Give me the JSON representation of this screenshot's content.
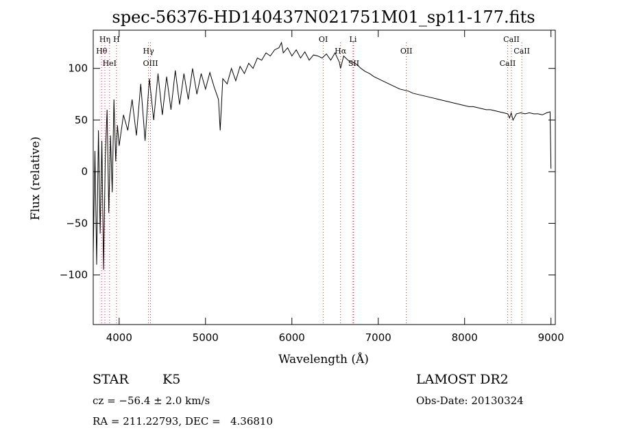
{
  "chart_data": {
    "type": "line",
    "title": "spec-56376-HD140437N021751M01_sp11-177.fits",
    "xlabel": "Wavelength (Å)",
    "ylabel": "Flux (relative)",
    "xlim": [
      3700,
      9050
    ],
    "ylim": [
      -148,
      137
    ],
    "xticks": [
      4000,
      5000,
      6000,
      7000,
      8000,
      9000
    ],
    "xtick_labels": [
      "4000",
      "5000",
      "6000",
      "7000",
      "8000",
      "9000"
    ],
    "yticks": [
      -100,
      -50,
      0,
      50,
      100
    ],
    "ytick_labels": [
      "−100",
      "−50",
      "0",
      "50",
      "100"
    ],
    "grid": false,
    "series": [
      {
        "name": "spectrum",
        "x": [
          3700,
          3720,
          3740,
          3760,
          3780,
          3800,
          3820,
          3840,
          3860,
          3880,
          3900,
          3920,
          3940,
          3960,
          3980,
          4000,
          4050,
          4100,
          4150,
          4200,
          4250,
          4300,
          4350,
          4400,
          4450,
          4500,
          4550,
          4600,
          4650,
          4700,
          4750,
          4800,
          4850,
          4900,
          4950,
          5000,
          5050,
          5100,
          5150,
          5170,
          5200,
          5250,
          5300,
          5350,
          5400,
          5450,
          5500,
          5550,
          5600,
          5650,
          5700,
          5750,
          5800,
          5850,
          5880,
          5900,
          5950,
          6000,
          6050,
          6100,
          6150,
          6200,
          6250,
          6300,
          6350,
          6400,
          6450,
          6500,
          6550,
          6563,
          6600,
          6650,
          6700,
          6750,
          6800,
          6850,
          6900,
          6950,
          7000,
          7050,
          7100,
          7150,
          7200,
          7250,
          7300,
          7350,
          7400,
          7450,
          7500,
          7550,
          7600,
          7650,
          7700,
          7750,
          7800,
          7850,
          7900,
          7950,
          8000,
          8050,
          8100,
          8150,
          8200,
          8250,
          8300,
          8350,
          8400,
          8450,
          8500,
          8520,
          8540,
          8560,
          8600,
          8650,
          8700,
          8750,
          8800,
          8850,
          8900,
          8950,
          8990,
          9000
        ],
        "y": [
          -80,
          20,
          -90,
          40,
          -60,
          30,
          -95,
          15,
          60,
          -40,
          35,
          -20,
          70,
          10,
          45,
          25,
          55,
          40,
          70,
          35,
          85,
          30,
          90,
          50,
          95,
          55,
          92,
          60,
          98,
          65,
          95,
          70,
          100,
          75,
          95,
          80,
          96,
          82,
          70,
          40,
          90,
          85,
          100,
          88,
          102,
          95,
          105,
          100,
          110,
          108,
          115,
          112,
          118,
          120,
          125,
          115,
          120,
          112,
          118,
          110,
          116,
          108,
          113,
          112,
          110,
          114,
          108,
          115,
          106,
          100,
          112,
          108,
          106,
          104,
          100,
          97,
          95,
          92,
          90,
          88,
          86,
          84,
          82,
          80,
          79,
          78,
          76,
          75,
          74,
          73,
          72,
          71,
          70,
          69,
          68,
          67,
          66,
          65,
          64,
          63,
          63,
          62,
          61,
          60,
          60,
          59,
          58,
          57,
          56,
          52,
          57,
          50,
          56,
          57,
          56,
          57,
          56,
          56,
          55,
          57,
          58,
          3
        ]
      }
    ],
    "lines": [
      {
        "label": "Hη",
        "wavelength": 3835
      },
      {
        "label": "Hθ",
        "wavelength": 3797
      },
      {
        "label": "HeI",
        "wavelength": 3889
      },
      {
        "label": "H",
        "wavelength": 3969
      },
      {
        "label": "Hγ",
        "wavelength": 4340
      },
      {
        "label": "OIII",
        "wavelength": 4363
      },
      {
        "label": "OI",
        "wavelength": 6364
      },
      {
        "label": "Hα",
        "wavelength": 6563
      },
      {
        "label": "SII",
        "wavelength": 6716
      },
      {
        "label": "Li",
        "wavelength": 6708
      },
      {
        "label": "OII",
        "wavelength": 7325
      },
      {
        "label": "CaII",
        "wavelength": 8498
      },
      {
        "label": "CaII",
        "wavelength": 8542
      },
      {
        "label": "CaII",
        "wavelength": 8662
      }
    ]
  },
  "info": {
    "object_class": "STAR",
    "subclass": "K5",
    "survey": "LAMOST DR2",
    "redshift": "cz = −56.4 ± 2.0 km/s",
    "obs_date": "Obs-Date: 20130324",
    "coordinates": "RA = 211.22793, DEC =   4.36810"
  }
}
